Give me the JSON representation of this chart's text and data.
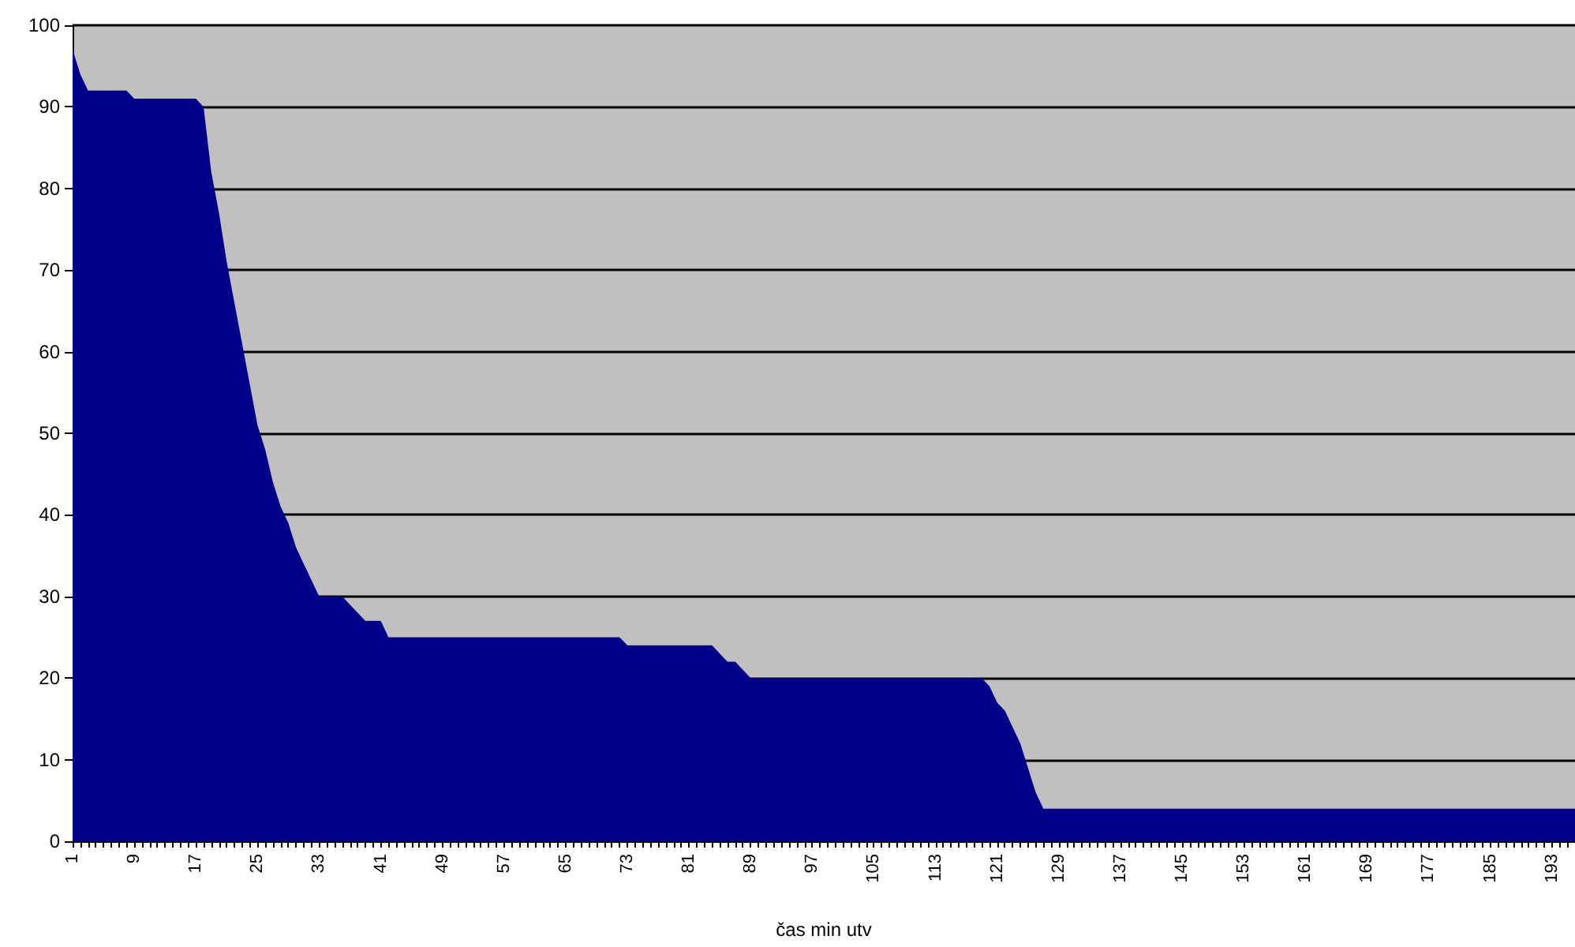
{
  "chart_data": {
    "type": "area",
    "xlabel": "čas min utv",
    "categories": [
      "1",
      null,
      null,
      null,
      null,
      null,
      null,
      null,
      "9",
      null,
      null,
      null,
      null,
      null,
      null,
      null,
      "17",
      null,
      null,
      null,
      null,
      null,
      null,
      null,
      "25",
      null,
      null,
      null,
      null,
      null,
      null,
      null,
      "33",
      null,
      null,
      null,
      null,
      null,
      null,
      null,
      "41",
      null,
      null,
      null,
      null,
      null,
      null,
      null,
      "49",
      null,
      null,
      null,
      null,
      null,
      null,
      null,
      "57",
      null,
      null,
      null,
      null,
      null,
      null,
      null,
      "65",
      null,
      null,
      null,
      null,
      null,
      null,
      null,
      "73",
      null,
      null,
      null,
      null,
      null,
      null,
      null,
      "81",
      null,
      null,
      null,
      null,
      null,
      null,
      null,
      "89",
      null,
      null,
      null,
      null,
      null,
      null,
      null,
      "97",
      null,
      null,
      null,
      null,
      null,
      null,
      null,
      "105",
      null,
      null,
      null,
      null,
      null,
      null,
      null,
      "113",
      null,
      null,
      null,
      null,
      null,
      null,
      null,
      "121",
      null,
      null,
      null,
      null,
      null,
      null,
      null,
      "129",
      null,
      null,
      null,
      null,
      null,
      null,
      null,
      "137",
      null,
      null,
      null,
      null,
      null,
      null,
      null,
      "145",
      null,
      null,
      null,
      null,
      null,
      null,
      null,
      "153",
      null,
      null,
      null,
      null,
      null,
      null,
      null,
      "161",
      null,
      null,
      null,
      null,
      null,
      null,
      null,
      "169",
      null,
      null,
      null,
      null,
      null,
      null,
      null,
      "177",
      null,
      null,
      null,
      null,
      null,
      null,
      null,
      "185",
      null,
      null,
      null,
      null,
      null,
      null,
      null,
      "193",
      null,
      null,
      null
    ],
    "series": [
      {
        "color": "#000088",
        "values": [
          97,
          94,
          92,
          92,
          92,
          92,
          92,
          92,
          91,
          91,
          91,
          91,
          91,
          91,
          91,
          91,
          91,
          90,
          82,
          77,
          71,
          66,
          61,
          56,
          51,
          48,
          44,
          41,
          39,
          36,
          34,
          32,
          30,
          30,
          30,
          30,
          29,
          28,
          27,
          27,
          27,
          25,
          25,
          25,
          25,
          25,
          25,
          25,
          25,
          25,
          25,
          25,
          25,
          25,
          25,
          25,
          25,
          25,
          25,
          25,
          25,
          25,
          25,
          25,
          25,
          25,
          25,
          25,
          25,
          25,
          25,
          25,
          24,
          24,
          24,
          24,
          24,
          24,
          24,
          24,
          24,
          24,
          24,
          24,
          23,
          22,
          22,
          21,
          20,
          20,
          20,
          20,
          20,
          20,
          20,
          20,
          20,
          20,
          20,
          20,
          20,
          20,
          20,
          20,
          20,
          20,
          20,
          20,
          20,
          20,
          20,
          20,
          20,
          20,
          20,
          20,
          20,
          20,
          20,
          19,
          17,
          16,
          14,
          12,
          9,
          6,
          4,
          4,
          4,
          4,
          4,
          4,
          4,
          4,
          4,
          4,
          4,
          4,
          4,
          4,
          4,
          4,
          4,
          4,
          4,
          4,
          4,
          4,
          4,
          4,
          4,
          4,
          4,
          4,
          4,
          4,
          4,
          4,
          4,
          4,
          4,
          4,
          4,
          4,
          4,
          4,
          4,
          4,
          4,
          4,
          4,
          4,
          4,
          4,
          4,
          4,
          4,
          4,
          4,
          4,
          4,
          4,
          4,
          4,
          4,
          4,
          4,
          4,
          4,
          4,
          4,
          4,
          4,
          4,
          4,
          4
        ]
      }
    ],
    "ylim": [
      0,
      100
    ],
    "yticks": [
      0,
      10,
      20,
      30,
      40,
      50,
      60,
      70,
      80,
      90,
      100
    ],
    "grid": "y"
  }
}
